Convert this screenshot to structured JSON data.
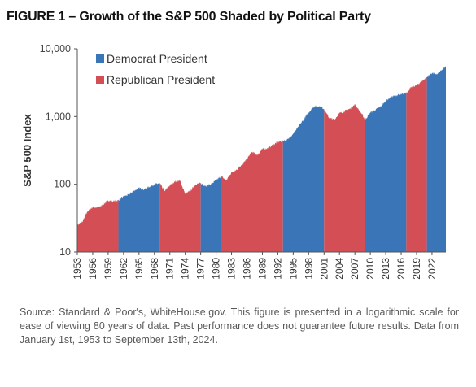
{
  "title": "FIGURE 1 – Growth of the S&P 500 Shaded by Political Party",
  "note": "Source: Standard & Poor's, WhiteHouse.gov. This figure is presented in a logarithmic scale for ease of viewing 80 years of data. Past performance does not guarantee future results. Data from January 1st, 1953 to September 13th, 2024.",
  "chart_data": {
    "type": "area",
    "ylabel": "S&P 500 Index",
    "xlabel": "",
    "yscale": "log",
    "ylim": [
      10,
      10000
    ],
    "xlim": [
      1953,
      2024.7
    ],
    "y_ticks": [
      {
        "value": 10,
        "label": "10"
      },
      {
        "value": 100,
        "label": "100"
      },
      {
        "value": 1000,
        "label": "1,000"
      },
      {
        "value": 10000,
        "label": "10,000"
      }
    ],
    "x_ticks": [
      "1953",
      "1956",
      "1959",
      "1962",
      "1965",
      "1968",
      "1971",
      "1974",
      "1977",
      "1980",
      "1983",
      "1986",
      "1989",
      "1992",
      "1995",
      "1998",
      "2001",
      "2004",
      "2007",
      "2010",
      "2013",
      "2016",
      "2019",
      "2022"
    ],
    "legend": {
      "position": "top-left",
      "items": [
        {
          "label": "Democrat President",
          "color": "#3a75b8"
        },
        {
          "label": "Republican President",
          "color": "#d34f55"
        }
      ]
    },
    "colors": {
      "Democrat": "#3a75b8",
      "Republican": "#d34f55"
    },
    "series": [
      {
        "party": "Republican",
        "x": [
          1953,
          1954,
          1955,
          1956,
          1957,
          1958,
          1959,
          1960,
          1961
        ],
        "y": [
          25,
          28,
          40,
          46,
          45,
          50,
          58,
          56,
          58
        ]
      },
      {
        "party": "Democrat",
        "x": [
          1961,
          1962,
          1963,
          1964,
          1965,
          1966,
          1967,
          1968,
          1969
        ],
        "y": [
          58,
          66,
          70,
          80,
          88,
          84,
          92,
          100,
          103
        ]
      },
      {
        "party": "Republican",
        "x": [
          1969,
          1970,
          1971,
          1972,
          1973,
          1974,
          1975,
          1976,
          1977
        ],
        "y": [
          103,
          80,
          96,
          110,
          112,
          72,
          80,
          100,
          103
        ]
      },
      {
        "party": "Democrat",
        "x": [
          1977,
          1978,
          1979,
          1980,
          1981
        ],
        "y": [
          103,
          95,
          100,
          115,
          130
        ]
      },
      {
        "party": "Republican",
        "x": [
          1981,
          1982,
          1983,
          1984,
          1985,
          1986,
          1987,
          1988,
          1989,
          1990,
          1991,
          1992,
          1993
        ],
        "y": [
          130,
          115,
          150,
          165,
          190,
          240,
          300,
          270,
          330,
          340,
          380,
          420,
          440
        ]
      },
      {
        "party": "Democrat",
        "x": [
          1993,
          1994,
          1995,
          1996,
          1997,
          1998,
          1999,
          2000,
          2001
        ],
        "y": [
          440,
          460,
          560,
          700,
          900,
          1150,
          1400,
          1430,
          1300
        ]
      },
      {
        "party": "Republican",
        "x": [
          2001,
          2002,
          2003,
          2004,
          2005,
          2006,
          2007,
          2008,
          2009
        ],
        "y": [
          1300,
          950,
          900,
          1120,
          1200,
          1300,
          1500,
          1200,
          900
        ]
      },
      {
        "party": "Democrat",
        "x": [
          2009,
          2010,
          2011,
          2012,
          2013,
          2014,
          2015,
          2016,
          2017
        ],
        "y": [
          900,
          1150,
          1250,
          1400,
          1700,
          1950,
          2050,
          2100,
          2270
        ]
      },
      {
        "party": "Republican",
        "x": [
          2017,
          2018,
          2019,
          2020,
          2021
        ],
        "y": [
          2270,
          2700,
          2900,
          3300,
          3800
        ]
      },
      {
        "party": "Democrat",
        "x": [
          2021,
          2022,
          2023,
          2024,
          2024.7
        ],
        "y": [
          3800,
          4400,
          4200,
          4900,
          5600
        ]
      }
    ]
  }
}
